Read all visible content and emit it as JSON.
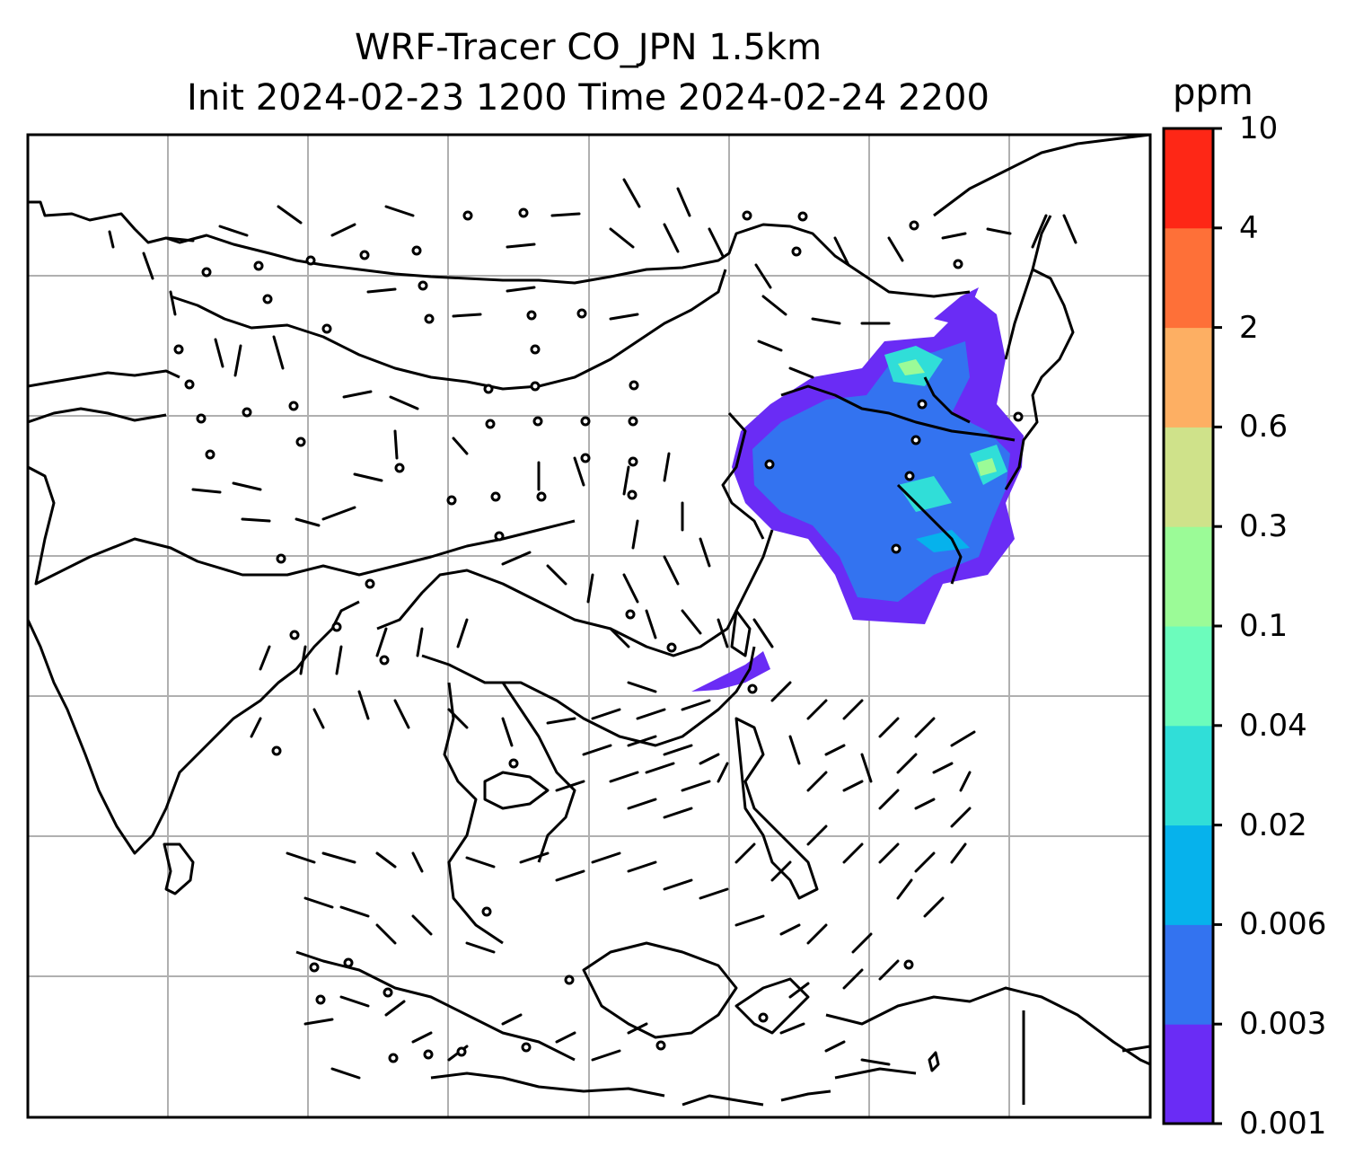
{
  "title": {
    "line1": "WRF-Tracer CO_JPN 1.5km",
    "line2": "Init 2024-02-23 1200 Time 2024-02-24 2200"
  },
  "colorbar": {
    "unit": "ppm",
    "ticks": [
      "0.001",
      "0.003",
      "0.006",
      "0.02",
      "0.04",
      "0.1",
      "0.3",
      "0.6",
      "2",
      "4",
      "10"
    ],
    "colors": [
      "#6a2cf5",
      "#3373f0",
      "#06b2ec",
      "#30ded8",
      "#6cfcbc",
      "#9bfb97",
      "#cfe28a",
      "#fdaf63",
      "#fe7038",
      "#fe2716"
    ]
  },
  "map": {
    "field": "CO tracer concentration",
    "level": "1.5km",
    "features": [
      "coastlines",
      "country borders",
      "lat/lon gridlines",
      "wind barbs",
      "calm-wind circles"
    ],
    "plume_region": "northeast China / Korean peninsula"
  }
}
